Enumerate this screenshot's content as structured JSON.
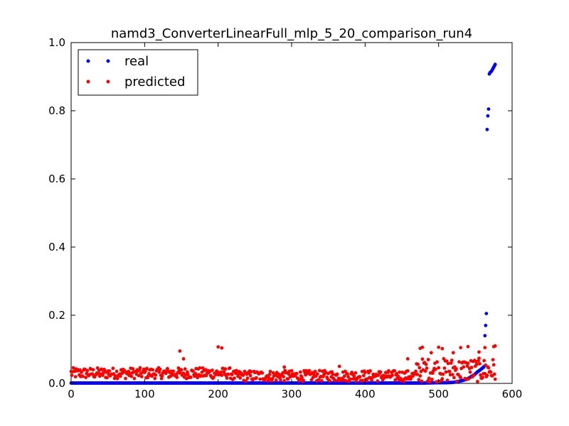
{
  "chart_data": {
    "type": "scatter",
    "title": "namd3_ConverterLinearFull_mlp_5_20_comparison_run4",
    "xlabel": "",
    "ylabel": "",
    "xlim": [
      0,
      600
    ],
    "ylim": [
      0.0,
      1.0
    ],
    "x_ticks": [
      "0",
      "100",
      "200",
      "300",
      "400",
      "500",
      "600"
    ],
    "y_ticks": [
      "0.0",
      "0.2",
      "0.4",
      "0.6",
      "0.8",
      "1.0"
    ],
    "grid": false,
    "legend_position": "top-left",
    "series": [
      {
        "name": "real",
        "color": "#0000ff",
        "x_range": [
          0,
          577
        ],
        "description_points": [
          [
            0,
            0.001
          ],
          [
            50,
            0.001
          ],
          [
            100,
            0.001
          ],
          [
            150,
            0.001
          ],
          [
            200,
            0.001
          ],
          [
            250,
            0.001
          ],
          [
            300,
            0.001
          ],
          [
            350,
            0.001
          ],
          [
            400,
            0.001
          ],
          [
            450,
            0.001
          ],
          [
            480,
            0.001
          ],
          [
            500,
            0.002
          ],
          [
            510,
            0.002
          ],
          [
            520,
            0.003
          ],
          [
            525,
            0.005
          ],
          [
            530,
            0.007
          ],
          [
            535,
            0.01
          ],
          [
            540,
            0.014
          ],
          [
            543,
            0.018
          ],
          [
            546,
            0.022
          ],
          [
            549,
            0.026
          ],
          [
            551,
            0.03
          ],
          [
            553,
            0.034
          ],
          [
            555,
            0.037
          ],
          [
            557,
            0.04
          ],
          [
            559,
            0.044
          ],
          [
            561,
            0.047
          ],
          [
            562,
            0.05
          ],
          [
            563,
            0.14
          ],
          [
            564,
            0.17
          ],
          [
            565,
            0.205
          ],
          [
            566,
            0.745
          ],
          [
            567,
            0.785
          ],
          [
            568,
            0.805
          ],
          [
            569,
            0.908
          ],
          [
            570,
            0.912
          ],
          [
            571,
            0.914
          ],
          [
            572,
            0.916
          ],
          [
            573,
            0.92
          ],
          [
            574,
            0.924
          ],
          [
            575,
            0.928
          ],
          [
            576,
            0.932
          ],
          [
            577,
            0.936
          ]
        ]
      },
      {
        "name": "predicted",
        "color": "#ff0000",
        "x_range": [
          0,
          577
        ],
        "description_points": [
          [
            148,
            0.095
          ],
          [
            153,
            0.072
          ],
          [
            200,
            0.107
          ],
          [
            205,
            0.104
          ],
          [
            290,
            0.048
          ],
          [
            365,
            0.05
          ],
          [
            458,
            0.072
          ],
          [
            475,
            0.103
          ],
          [
            478,
            0.106
          ],
          [
            490,
            0.09
          ],
          [
            500,
            0.106
          ],
          [
            505,
            0.102
          ],
          [
            520,
            0.09
          ],
          [
            530,
            0.105
          ],
          [
            540,
            0.108
          ],
          [
            555,
            0.092
          ],
          [
            563,
            0.105
          ],
          [
            575,
            0.108
          ],
          [
            577,
            0.11
          ]
        ]
      }
    ]
  }
}
